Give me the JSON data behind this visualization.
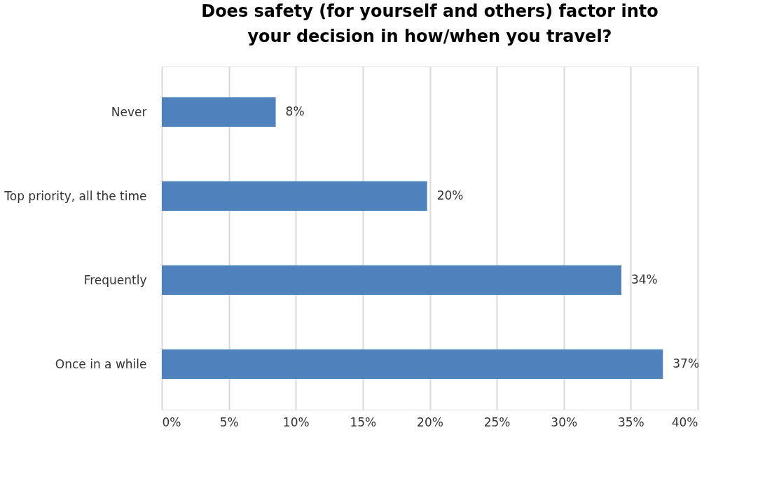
{
  "chart_data": {
    "type": "bar",
    "orientation": "horizontal",
    "title": "Does safety (for yourself and others) factor into your decision in how/when you travel?",
    "categories": [
      "Never",
      "Top priority, all the time",
      "Frequently",
      "Once in a while"
    ],
    "values": [
      8.5,
      19.8,
      34.3,
      37.4
    ],
    "color": "#4f81bd",
    "value_labels": [
      "8%",
      "20%",
      "34%",
      "37%"
    ],
    "xlim": [
      0,
      40
    ],
    "xticks": [
      {
        "value": 0,
        "label": "0%"
      },
      {
        "value": 5,
        "label": "5%"
      },
      {
        "value": 10,
        "label": "10%"
      },
      {
        "value": 15,
        "label": "15%"
      },
      {
        "value": 20,
        "label": "20%"
      },
      {
        "value": 25,
        "label": "25%"
      },
      {
        "value": 30,
        "label": "30%"
      },
      {
        "value": 35,
        "label": "35%"
      },
      {
        "value": 40,
        "label": "40%"
      }
    ],
    "grid": "x"
  }
}
